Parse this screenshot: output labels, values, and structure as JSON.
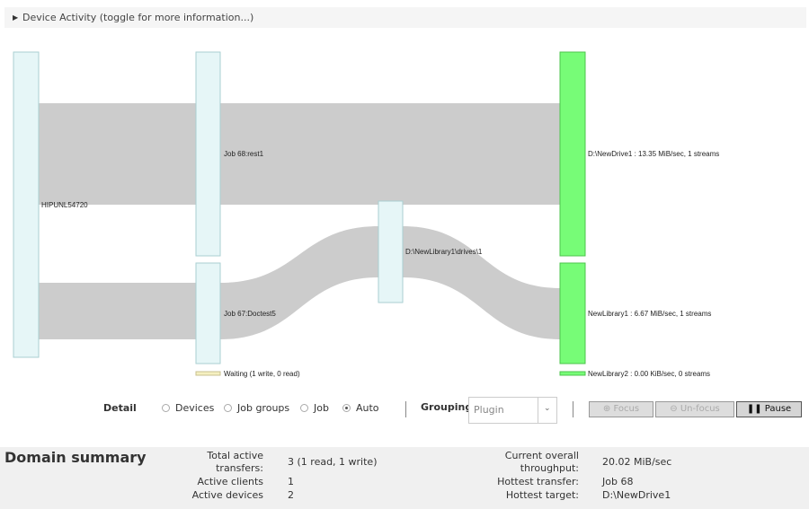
{
  "header": {
    "title": "Device Activity (toggle for more information...)",
    "toggle_icon": "triangle-right-icon"
  },
  "diagram": {
    "nodes": [
      {
        "id": "client",
        "label": "HIPUNL54720",
        "color": "#e6f6f7"
      },
      {
        "id": "job68",
        "label": "Job 68:rest1",
        "color": "#e6f6f7"
      },
      {
        "id": "job67",
        "label": "Job 67:Doctest5",
        "color": "#e6f6f7"
      },
      {
        "id": "drivepath",
        "label": "D:\\NewLibrary1\\drives\\1",
        "color": "#e6f6f7"
      },
      {
        "id": "newdrive1",
        "label": "D:\\NewDrive1 : 13.35 MiB/sec, 1 streams",
        "color": "#77fc77"
      },
      {
        "id": "newlibrary1",
        "label": "NewLibrary1 : 6.67 MiB/sec, 1 streams",
        "color": "#77fc77"
      }
    ],
    "waiting": {
      "label": "Waiting (1 write, 0 read)",
      "color": "#f5f0c0"
    },
    "idle": {
      "label": "NewLibrary2 : 0.00 KiB/sec, 0 streams",
      "color": "#77fc77"
    },
    "link_color": "#cccccc"
  },
  "controls": {
    "detail_label": "Detail",
    "options": [
      {
        "label": "Devices",
        "selected": false
      },
      {
        "label": "Job groups",
        "selected": false
      },
      {
        "label": "Job",
        "selected": false
      },
      {
        "label": "Auto",
        "selected": true
      }
    ],
    "grouping_label": "Grouping",
    "grouping_value": "Plugin",
    "focus": "Focus",
    "unfocus": "Un-focus",
    "pause": "Pause"
  },
  "summary": {
    "title": "Domain summary",
    "total_active_label_1": "Total active",
    "total_active_label_2": "transfers:",
    "total_active": "3 (1 read, 1 write)",
    "clients_label": "Active clients",
    "clients": "1",
    "devices_label": "Active devices",
    "devices": "2",
    "throughput_label_1": "Current overall",
    "throughput_label_2": "throughput:",
    "throughput": "20.02 MiB/sec",
    "hottest_transfer_label": "Hottest transfer:",
    "hottest_transfer": "Job 68",
    "hottest_target_label": "Hottest target:",
    "hottest_target": "D:\\NewDrive1"
  }
}
